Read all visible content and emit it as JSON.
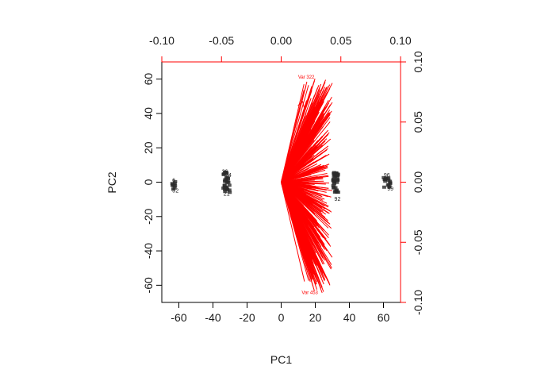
{
  "chart_data": {
    "type": "scatter",
    "title": "",
    "xlabel": "PC1",
    "ylabel": "PC2",
    "xlim": [
      -70,
      70
    ],
    "ylim": [
      -70,
      70
    ],
    "x_ticks": [
      "-60",
      "-40",
      "-20",
      "0",
      "20",
      "40",
      "60"
    ],
    "y_ticks": [
      "-60",
      "-40",
      "-20",
      "0",
      "20",
      "40",
      "60"
    ],
    "secondary_xlim": [
      -0.1,
      0.1
    ],
    "secondary_ylim": [
      -0.1,
      0.1
    ],
    "secondary_x_ticks": [
      "-0.10",
      "-0.05",
      "0.00",
      "0.05",
      "0.10"
    ],
    "secondary_y_ticks": [
      "-0.10",
      "-0.05",
      "0.00",
      "0.05",
      "0.10"
    ],
    "grid": false,
    "colors": {
      "observations": "#1a1a1a",
      "loadings": "#ff0000",
      "secondary_axis": "#ff0000"
    },
    "observations": [
      {
        "label": "6",
        "x": -63,
        "y": 1
      },
      {
        "label": "7",
        "x": -63,
        "y": 0
      },
      {
        "label": "8",
        "x": -64,
        "y": -2
      },
      {
        "label": "5",
        "x": -63,
        "y": -5
      },
      {
        "label": "2",
        "x": -61,
        "y": -5
      },
      {
        "label": "26",
        "x": -33,
        "y": 6
      },
      {
        "label": "24",
        "x": -31,
        "y": 4
      },
      {
        "label": "21",
        "x": -32,
        "y": -7
      },
      {
        "label": "92",
        "x": 33,
        "y": -10
      },
      {
        "label": "96",
        "x": 62,
        "y": 4
      },
      {
        "label": "99",
        "x": 64,
        "y": -4
      }
    ],
    "loading_labels": [
      {
        "label": "Var 322",
        "x": 0.021,
        "y": 0.086
      },
      {
        "label": "Var 453",
        "x": 0.024,
        "y": -0.093
      }
    ]
  }
}
